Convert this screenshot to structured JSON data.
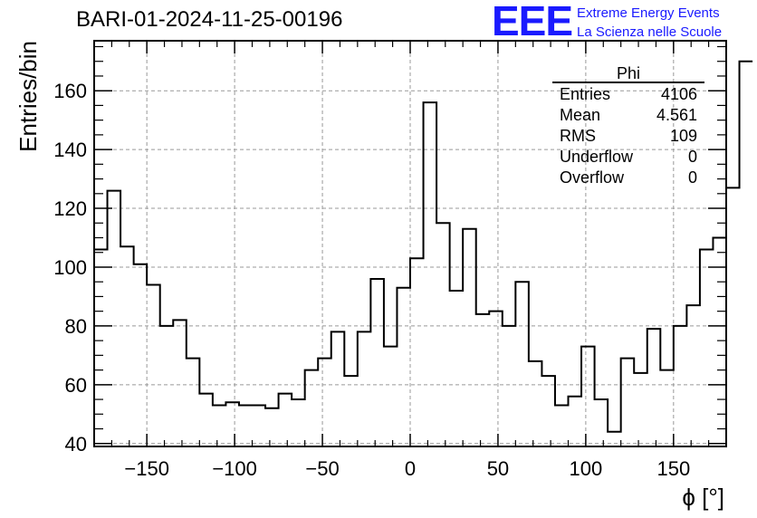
{
  "title": "BARI-01-2024-11-25-00196",
  "logo": {
    "mark": "EEE",
    "line1": "Extreme Energy Events",
    "line2": "La Scienza nelle Scuole",
    "color": "#1a1aff"
  },
  "stats": {
    "name": "Phi",
    "rows": [
      {
        "label": "Entries",
        "value": "4106"
      },
      {
        "label": "Mean",
        "value": "4.561"
      },
      {
        "label": "RMS",
        "value": "109"
      },
      {
        "label": "Underflow",
        "value": "0"
      },
      {
        "label": "Overflow",
        "value": "0"
      }
    ]
  },
  "chart_data": {
    "type": "bar",
    "style": "step-histogram",
    "title": "BARI-01-2024-11-25-00196",
    "xlabel": "ϕ [°]",
    "ylabel": "Entries/bin",
    "xlim": [
      -180,
      180
    ],
    "ylim": [
      39,
      177
    ],
    "x_ticks": [
      -150,
      -100,
      -50,
      0,
      50,
      100,
      150
    ],
    "x_tick_labels": [
      "−150",
      "−100",
      "−50",
      "0",
      "50",
      "100",
      "150"
    ],
    "y_ticks": [
      40,
      60,
      80,
      100,
      120,
      140,
      160
    ],
    "y_tick_labels": [
      "40",
      "60",
      "80",
      "100",
      "120",
      "140",
      "160"
    ],
    "grid": true,
    "bin_edges_start": -180,
    "bin_width": 7.5,
    "values": [
      106,
      126,
      107,
      101,
      94,
      80,
      82,
      69,
      57,
      53,
      54,
      53,
      53,
      52,
      57,
      55,
      65,
      69,
      78,
      63,
      78,
      96,
      73,
      93,
      103,
      156,
      115,
      92,
      113,
      84,
      85,
      80,
      95,
      68,
      63,
      53,
      56,
      73,
      55,
      44,
      69,
      64,
      79,
      65,
      80,
      87,
      106,
      110,
      127,
      170
    ]
  }
}
